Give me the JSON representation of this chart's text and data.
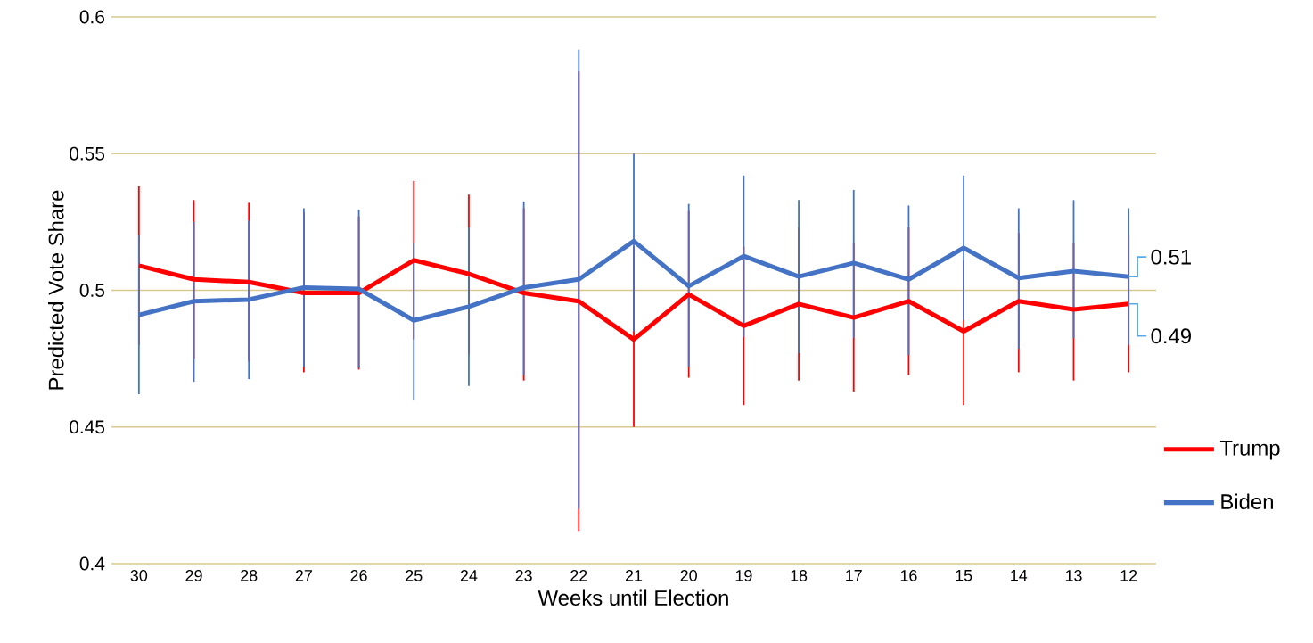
{
  "chart_data": {
    "type": "line",
    "xlabel": "Weeks until Election",
    "ylabel": "Predicted Vote Share",
    "categories": [
      "30",
      "29",
      "28",
      "27",
      "26",
      "25",
      "24",
      "23",
      "22",
      "21",
      "20",
      "19",
      "18",
      "17",
      "16",
      "15",
      "14",
      "13",
      "12"
    ],
    "ylim": [
      0.4,
      0.6
    ],
    "yticks": [
      0.4,
      0.45,
      0.5,
      0.55,
      0.6
    ],
    "grid": "y",
    "legend": "right",
    "marker": "none",
    "line_style": "solid",
    "series": [
      {
        "name": "Trump",
        "color": "#ff0000",
        "values": [
          0.509,
          0.504,
          0.503,
          0.499,
          0.499,
          0.511,
          0.506,
          0.499,
          0.496,
          0.482,
          0.4985,
          0.487,
          0.495,
          0.49,
          0.496,
          0.485,
          0.496,
          0.493,
          0.495
        ],
        "errors": [
          [
            0.48,
            0.538
          ],
          [
            0.475,
            0.533
          ],
          [
            0.474,
            0.532
          ],
          [
            0.47,
            0.5285
          ],
          [
            0.471,
            0.527
          ],
          [
            0.482,
            0.54
          ],
          [
            0.4765,
            0.535
          ],
          [
            0.467,
            0.53
          ],
          [
            0.412,
            0.58
          ],
          [
            0.45,
            0.516
          ],
          [
            0.468,
            0.529
          ],
          [
            0.458,
            0.516
          ],
          [
            0.467,
            0.523
          ],
          [
            0.463,
            0.5175
          ],
          [
            0.469,
            0.523
          ],
          [
            0.458,
            0.511
          ],
          [
            0.47,
            0.521
          ],
          [
            0.467,
            0.5175
          ],
          [
            0.47,
            0.52
          ]
        ],
        "value_labels": [
          null,
          null,
          null,
          null,
          null,
          null,
          null,
          null,
          null,
          null,
          null,
          null,
          null,
          null,
          null,
          null,
          null,
          null,
          "0.49"
        ]
      },
      {
        "name": "Biden",
        "color": "#4472c4",
        "values": [
          0.491,
          0.496,
          0.4966,
          0.501,
          0.5005,
          0.489,
          0.494,
          0.501,
          0.504,
          0.518,
          0.5015,
          0.5125,
          0.505,
          0.51,
          0.504,
          0.5155,
          0.5045,
          0.507,
          0.505
        ],
        "errors": [
          [
            0.462,
            0.52
          ],
          [
            0.4665,
            0.525
          ],
          [
            0.4675,
            0.5255
          ],
          [
            0.472,
            0.53
          ],
          [
            0.4715,
            0.5295
          ],
          [
            0.46,
            0.5175
          ],
          [
            0.465,
            0.523
          ],
          [
            0.469,
            0.5325
          ],
          [
            0.42,
            0.588
          ],
          [
            0.485,
            0.55
          ],
          [
            0.472,
            0.5316
          ],
          [
            0.483,
            0.542
          ],
          [
            0.477,
            0.533
          ],
          [
            0.4826,
            0.5367
          ],
          [
            0.4763,
            0.531
          ],
          [
            0.489,
            0.542
          ],
          [
            0.4786,
            0.53
          ],
          [
            0.4825,
            0.533
          ],
          [
            0.48,
            0.53
          ]
        ],
        "value_labels": [
          null,
          null,
          null,
          null,
          null,
          null,
          null,
          null,
          null,
          null,
          null,
          null,
          null,
          null,
          null,
          null,
          null,
          null,
          "0.51"
        ]
      }
    ]
  }
}
